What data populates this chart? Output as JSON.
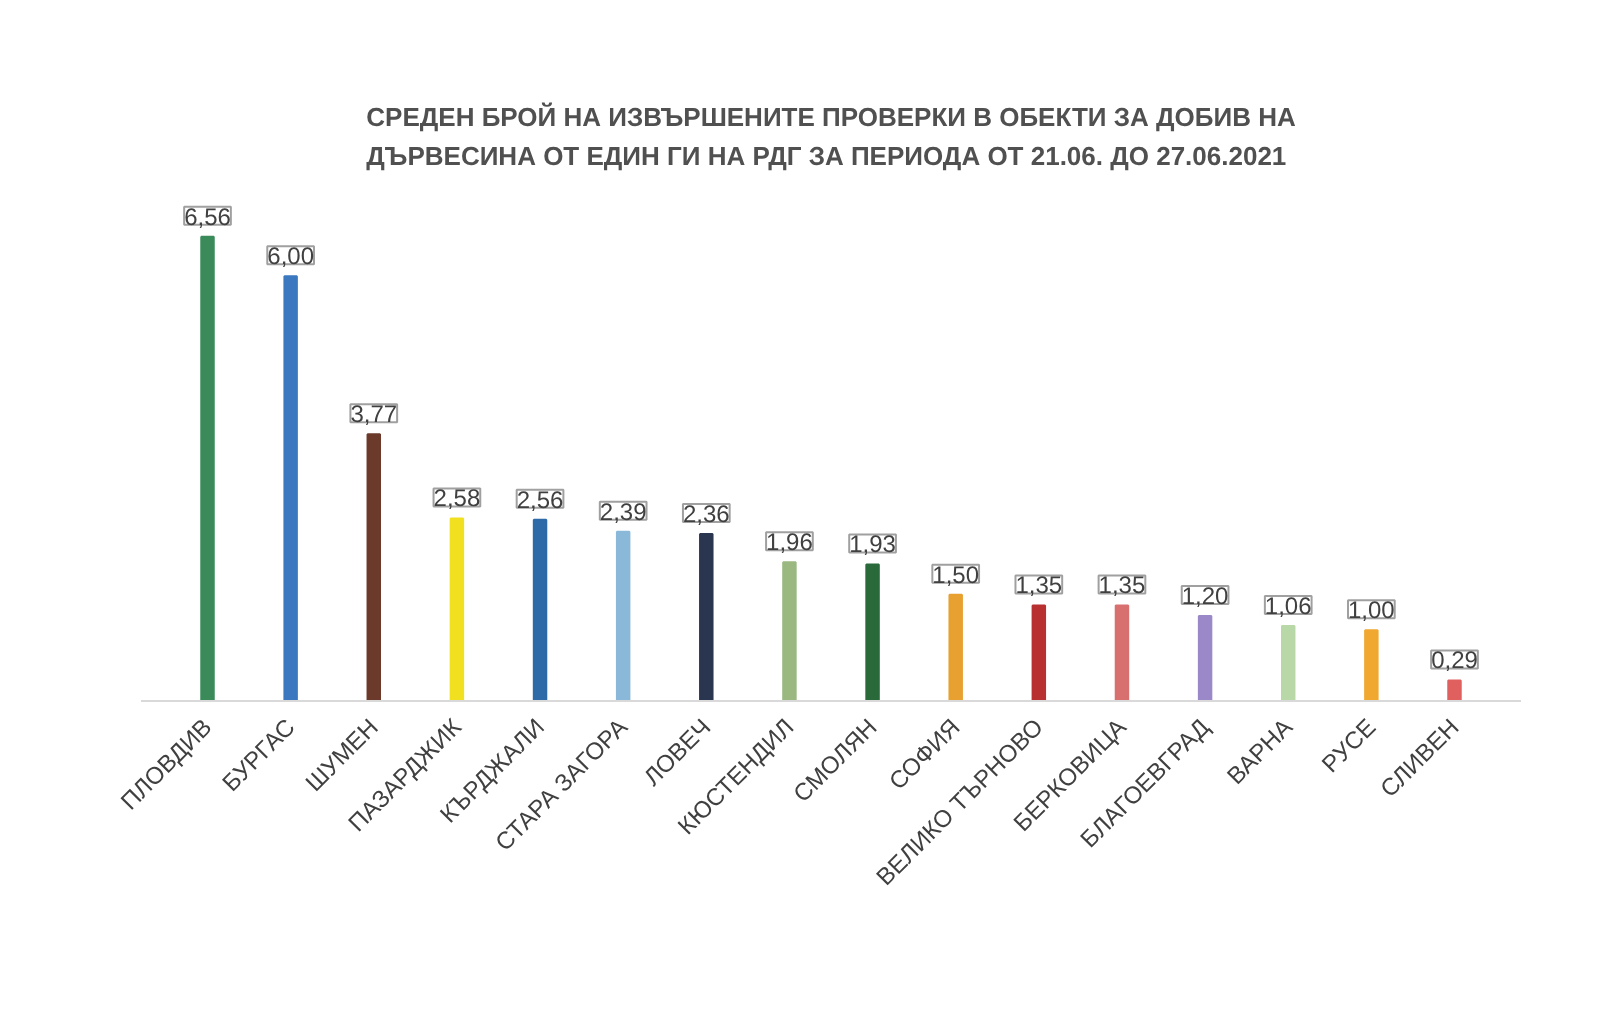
{
  "chart_data": {
    "type": "bar",
    "title": "СРЕДЕН БРОЙ НА ИЗВЪРШЕНИТЕ ПРОВЕРКИ В ОБЕКТИ ЗА ДОБИВ НА ДЪРВЕСИНА ОТ ЕДИН ГИ НА РДГ ЗА ПЕРИОДА ОТ 21.06. ДО 27.06.2021",
    "categories": [
      "ПЛОВДИВ",
      "БУРГАС",
      "ШУМЕН",
      "ПАЗАРДЖИК",
      "КЪРДЖАЛИ",
      "СТАРА ЗАГОРА",
      "ЛОВЕЧ",
      "КЮСТЕНДИЛ",
      "СМОЛЯН",
      "СОФИЯ",
      "ВЕЛИКО ТЪРНОВО",
      "БЕРКОВИЦА",
      "БЛАГОЕВГРАД",
      "ВАРНА",
      "РУСЕ",
      "СЛИВЕН"
    ],
    "values": [
      6.56,
      6.0,
      3.77,
      2.58,
      2.56,
      2.39,
      2.36,
      1.96,
      1.93,
      1.5,
      1.35,
      1.35,
      1.2,
      1.06,
      1.0,
      0.29
    ],
    "value_labels": [
      "6,56",
      "6,00",
      "3,77",
      "2,58",
      "2,56",
      "2,39",
      "2,36",
      "1,96",
      "1,93",
      "1,50",
      "1,35",
      "1,35",
      "1,20",
      "1,06",
      "1,00",
      "0,29"
    ],
    "colors": [
      "#3a8a5a",
      "#3b78c0",
      "#6b3a2a",
      "#f0e020",
      "#2e6aa8",
      "#8ab8d8",
      "#2a3550",
      "#9ab880",
      "#2a6a3a",
      "#e8a030",
      "#b83030",
      "#d87070",
      "#9a88c8",
      "#b8d8a8",
      "#f0a830",
      "#e06060"
    ]
  }
}
